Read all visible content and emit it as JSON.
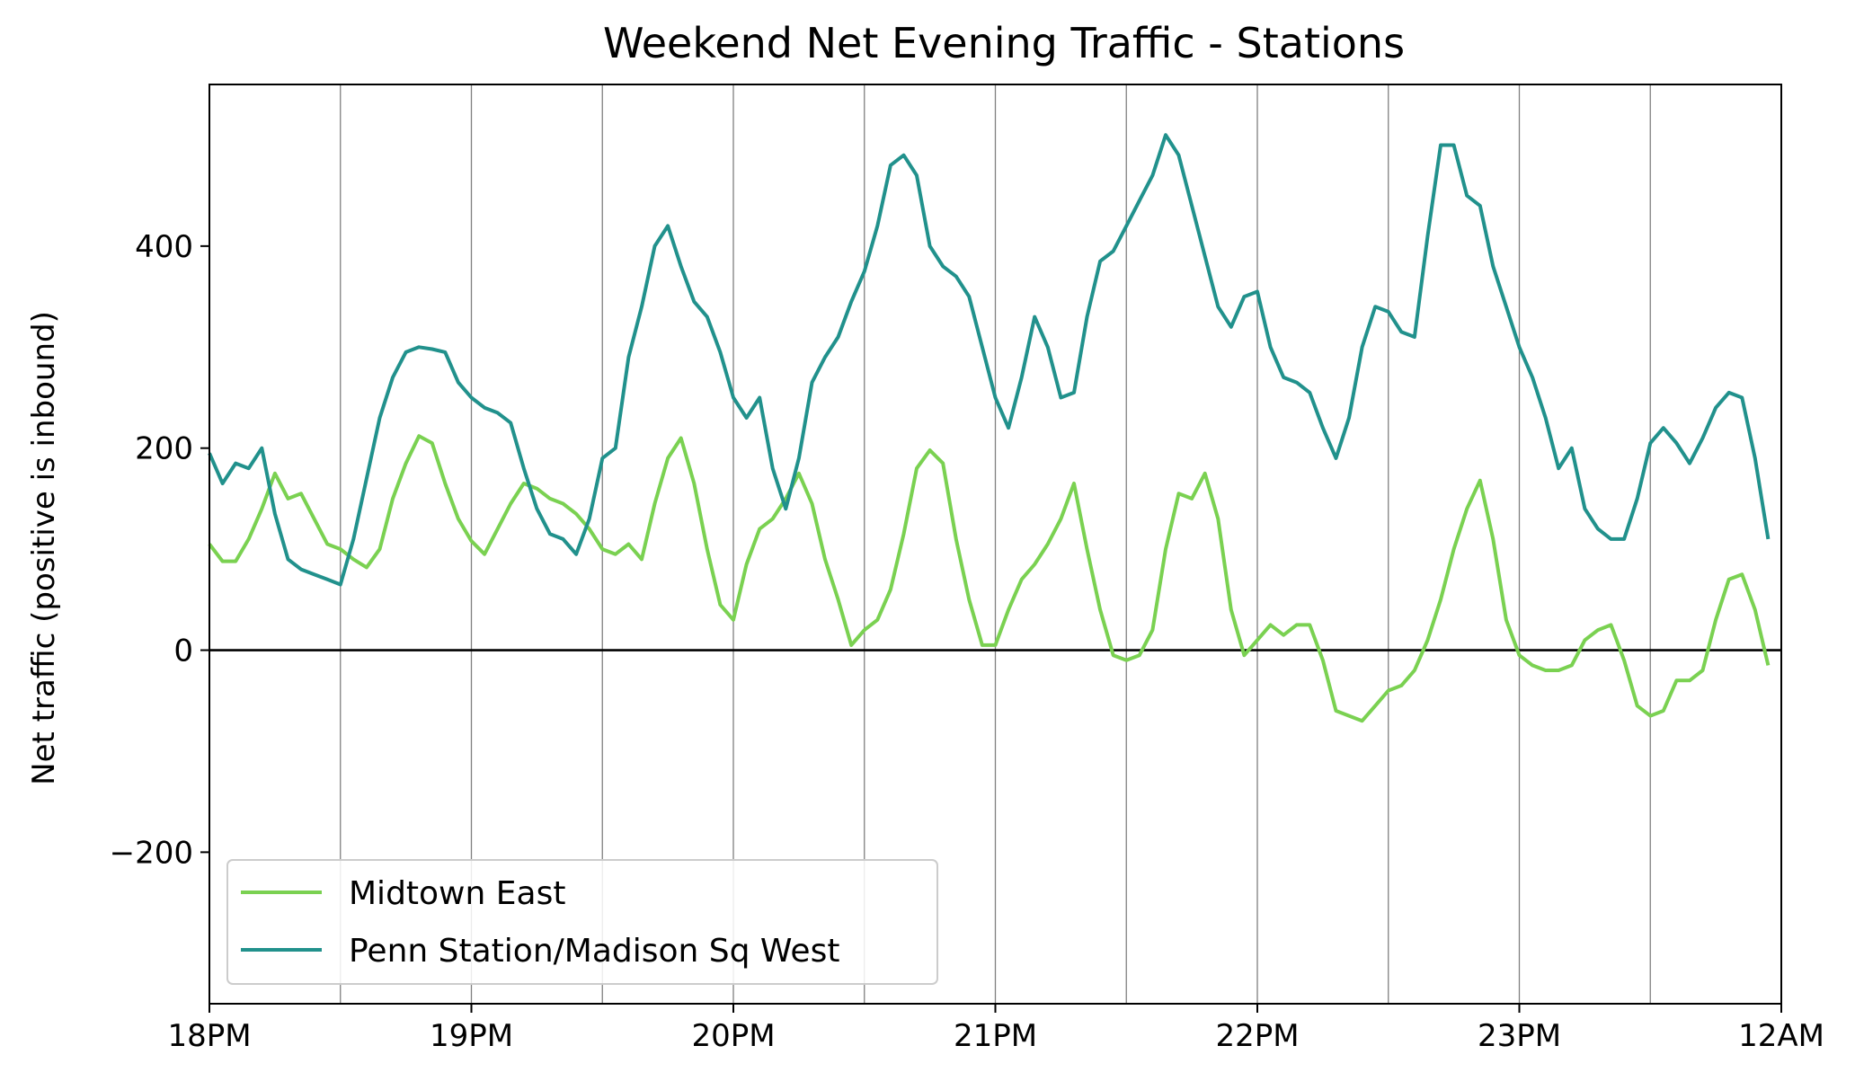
{
  "chart_data": {
    "type": "line",
    "title": "Weekend Net Evening Traffic - Stations",
    "xlabel": "",
    "ylabel": "Net traffic (positive is inbound)",
    "xlim": [
      18,
      24
    ],
    "ylim": [
      -350,
      560
    ],
    "x_ticks": [
      {
        "value": 18,
        "label": "18PM"
      },
      {
        "value": 19,
        "label": "19PM"
      },
      {
        "value": 20,
        "label": "20PM"
      },
      {
        "value": 21,
        "label": "21PM"
      },
      {
        "value": 22,
        "label": "22PM"
      },
      {
        "value": 23,
        "label": "23PM"
      },
      {
        "value": 24,
        "label": "12AM"
      }
    ],
    "y_ticks": [
      {
        "value": -200,
        "label": "−200"
      },
      {
        "value": 0,
        "label": "0"
      },
      {
        "value": 200,
        "label": "200"
      },
      {
        "value": 400,
        "label": "400"
      }
    ],
    "vertical_gridlines": [
      18.5,
      19,
      19.5,
      20,
      20.5,
      21,
      21.5,
      22,
      22.5,
      23,
      23.5
    ],
    "zero_line": true,
    "legend_placement": "lower-left",
    "series": [
      {
        "name": "Midtown East",
        "color": "#7AD151",
        "x": [
          18.0,
          18.05,
          18.1,
          18.15,
          18.2,
          18.25,
          18.3,
          18.35,
          18.4,
          18.45,
          18.5,
          18.55,
          18.6,
          18.65,
          18.7,
          18.75,
          18.8,
          18.85,
          18.9,
          18.95,
          19.0,
          19.05,
          19.1,
          19.15,
          19.2,
          19.25,
          19.3,
          19.35,
          19.4,
          19.45,
          19.5,
          19.55,
          19.6,
          19.65,
          19.7,
          19.75,
          19.8,
          19.85,
          19.9,
          19.95,
          20.0,
          20.05,
          20.1,
          20.15,
          20.2,
          20.25,
          20.3,
          20.35,
          20.4,
          20.45,
          20.5,
          20.55,
          20.6,
          20.65,
          20.7,
          20.75,
          20.8,
          20.85,
          20.9,
          20.95,
          21.0,
          21.05,
          21.1,
          21.15,
          21.2,
          21.25,
          21.3,
          21.35,
          21.4,
          21.45,
          21.5,
          21.55,
          21.6,
          21.65,
          21.7,
          21.75,
          21.8,
          21.85,
          21.9,
          21.95,
          22.0,
          22.05,
          22.1,
          22.15,
          22.2,
          22.25,
          22.3,
          22.35,
          22.4,
          22.45,
          22.5,
          22.55,
          22.6,
          22.65,
          22.7,
          22.75,
          22.8,
          22.85,
          22.9,
          22.95,
          23.0,
          23.05,
          23.1,
          23.15,
          23.2,
          23.25,
          23.3,
          23.35,
          23.4,
          23.45,
          23.5,
          23.55,
          23.6,
          23.65,
          23.7,
          23.75,
          23.8,
          23.85,
          23.9,
          23.95
        ],
        "values": [
          105,
          88,
          88,
          110,
          140,
          175,
          150,
          155,
          130,
          105,
          100,
          90,
          82,
          100,
          150,
          185,
          212,
          205,
          165,
          130,
          108,
          95,
          120,
          145,
          165,
          160,
          150,
          145,
          135,
          120,
          100,
          95,
          105,
          90,
          145,
          190,
          210,
          165,
          100,
          45,
          30,
          85,
          120,
          130,
          150,
          175,
          145,
          90,
          50,
          5,
          20,
          30,
          60,
          115,
          180,
          198,
          185,
          110,
          50,
          5,
          5,
          40,
          70,
          85,
          105,
          130,
          165,
          100,
          40,
          -5,
          -10,
          -5,
          20,
          100,
          155,
          150,
          175,
          130,
          40,
          -5,
          10,
          25,
          15,
          25,
          25,
          -10,
          -60,
          -65,
          -70,
          -55,
          -40,
          -35,
          -20,
          10,
          50,
          100,
          140,
          168,
          110,
          30,
          -5,
          -15,
          -20,
          -20,
          -15,
          10,
          20,
          25,
          -10,
          -55,
          -65,
          -60,
          -30,
          -30,
          -20,
          30,
          70,
          75,
          40,
          -15
        ]
      },
      {
        "name": "Penn Station/Madison Sq West",
        "color": "#21918C",
        "x": [
          18.0,
          18.05,
          18.1,
          18.15,
          18.2,
          18.25,
          18.3,
          18.35,
          18.4,
          18.45,
          18.5,
          18.55,
          18.6,
          18.65,
          18.7,
          18.75,
          18.8,
          18.85,
          18.9,
          18.95,
          19.0,
          19.05,
          19.1,
          19.15,
          19.2,
          19.25,
          19.3,
          19.35,
          19.4,
          19.45,
          19.5,
          19.55,
          19.6,
          19.65,
          19.7,
          19.75,
          19.8,
          19.85,
          19.9,
          19.95,
          20.0,
          20.05,
          20.1,
          20.15,
          20.2,
          20.25,
          20.3,
          20.35,
          20.4,
          20.45,
          20.5,
          20.55,
          20.6,
          20.65,
          20.7,
          20.75,
          20.8,
          20.85,
          20.9,
          20.95,
          21.0,
          21.05,
          21.1,
          21.15,
          21.2,
          21.25,
          21.3,
          21.35,
          21.4,
          21.45,
          21.5,
          21.55,
          21.6,
          21.65,
          21.7,
          21.75,
          21.8,
          21.85,
          21.9,
          21.95,
          22.0,
          22.05,
          22.1,
          22.15,
          22.2,
          22.25,
          22.3,
          22.35,
          22.4,
          22.45,
          22.5,
          22.55,
          22.6,
          22.65,
          22.7,
          22.75,
          22.8,
          22.85,
          22.9,
          22.95,
          23.0,
          23.05,
          23.1,
          23.15,
          23.2,
          23.25,
          23.3,
          23.35,
          23.4,
          23.45,
          23.5,
          23.55,
          23.6,
          23.65,
          23.7,
          23.75,
          23.8,
          23.85,
          23.9,
          23.95
        ],
        "values": [
          195,
          165,
          185,
          180,
          200,
          135,
          90,
          80,
          75,
          70,
          65,
          110,
          170,
          230,
          270,
          295,
          300,
          298,
          295,
          265,
          250,
          240,
          235,
          225,
          180,
          140,
          115,
          110,
          95,
          130,
          190,
          200,
          290,
          340,
          400,
          420,
          380,
          345,
          330,
          295,
          250,
          230,
          250,
          180,
          140,
          190,
          265,
          290,
          310,
          345,
          375,
          420,
          480,
          490,
          470,
          400,
          380,
          370,
          350,
          300,
          250,
          220,
          270,
          330,
          300,
          250,
          255,
          330,
          385,
          395,
          420,
          445,
          470,
          510,
          490,
          440,
          390,
          340,
          320,
          350,
          355,
          300,
          270,
          265,
          255,
          220,
          190,
          230,
          300,
          340,
          335,
          315,
          310,
          410,
          500,
          500,
          450,
          440,
          380,
          340,
          300,
          270,
          230,
          180,
          200,
          140,
          120,
          110,
          110,
          150,
          205,
          220,
          205,
          185,
          210,
          240,
          255,
          250,
          190,
          110
        ]
      }
    ]
  }
}
